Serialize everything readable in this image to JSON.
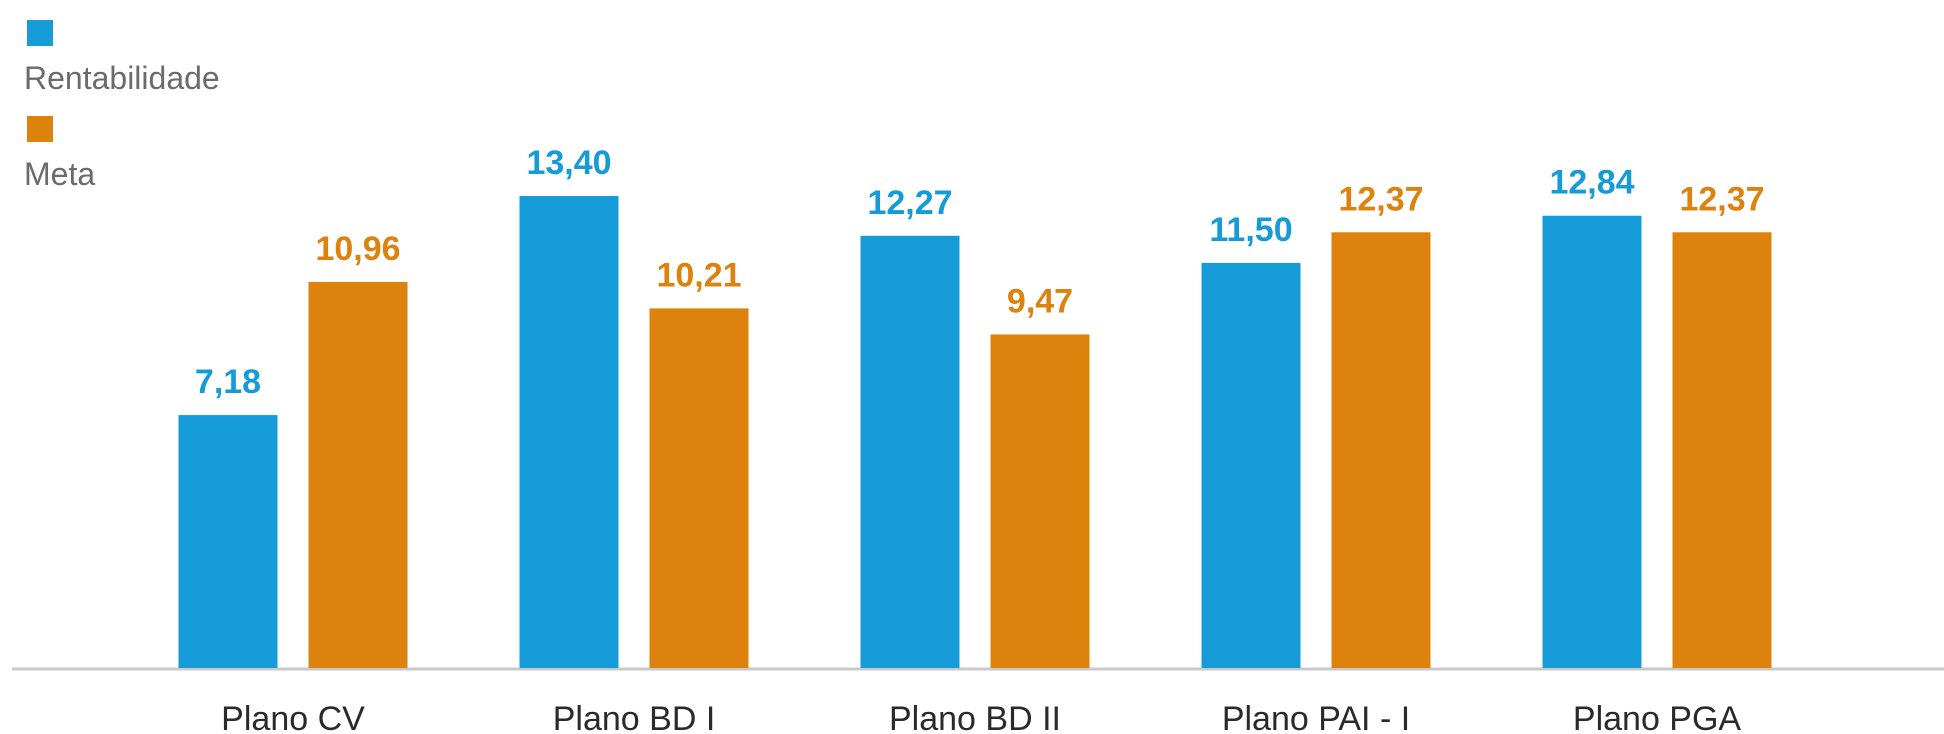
{
  "chart_data": {
    "type": "bar",
    "title": "",
    "xlabel": "",
    "ylabel": "",
    "ylim": [
      0,
      13.4
    ],
    "grid": false,
    "legend_position": "top-left",
    "categories": [
      "Plano CV",
      "Plano BD I",
      "Plano BD II",
      "Plano PAI - I",
      "Plano PGA"
    ],
    "series": [
      {
        "name": "Rentabilidade",
        "color": "#149bd8",
        "values": [
          7.18,
          13.4,
          12.27,
          11.5,
          12.84
        ],
        "labels": [
          "7,18",
          "13,40",
          "12,27",
          "11,50",
          "12,84"
        ]
      },
      {
        "name": "Meta",
        "color": "#dd820c",
        "values": [
          10.96,
          10.21,
          9.47,
          12.37,
          12.37
        ],
        "labels": [
          "10,96",
          "10,21",
          "9,47",
          "12,37",
          "12,37"
        ]
      }
    ]
  }
}
